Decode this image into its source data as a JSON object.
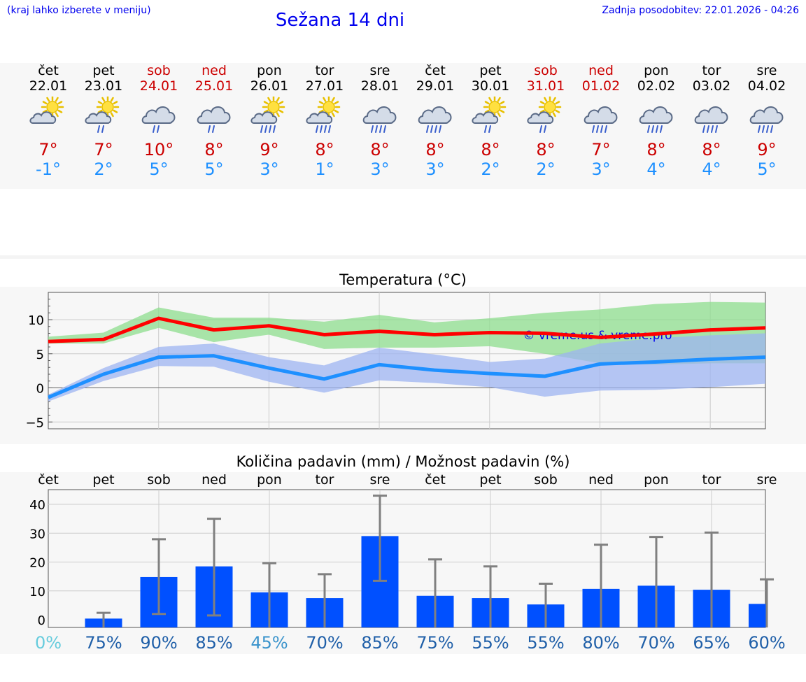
{
  "header": {
    "note": "(kraj lahko izberete v meniju)",
    "title": "Sežana 14 dni",
    "updated": "Zadnja posodobitev: 22.01.2026 - 04:26"
  },
  "days": [
    {
      "name": "čet",
      "date": "22.01",
      "weekend": false,
      "icon": "partly-cloudy-icon",
      "tmax": "7°",
      "tmin": "-1°"
    },
    {
      "name": "pet",
      "date": "23.01",
      "weekend": false,
      "icon": "sun-cloud-rain-icon",
      "tmax": "7°",
      "tmin": "2°"
    },
    {
      "name": "sob",
      "date": "24.01",
      "weekend": true,
      "icon": "cloud-rain-icon",
      "tmax": "10°",
      "tmin": "5°"
    },
    {
      "name": "ned",
      "date": "25.01",
      "weekend": true,
      "icon": "cloud-rain-icon",
      "tmax": "8°",
      "tmin": "5°"
    },
    {
      "name": "pon",
      "date": "26.01",
      "weekend": false,
      "icon": "sun-cloud-heavy-rain-icon",
      "tmax": "9°",
      "tmin": "3°"
    },
    {
      "name": "tor",
      "date": "27.01",
      "weekend": false,
      "icon": "sun-cloud-heavy-rain-icon",
      "tmax": "8°",
      "tmin": "1°"
    },
    {
      "name": "sre",
      "date": "28.01",
      "weekend": false,
      "icon": "cloud-heavy-rain-icon",
      "tmax": "8°",
      "tmin": "3°"
    },
    {
      "name": "čet",
      "date": "29.01",
      "weekend": false,
      "icon": "cloud-heavy-rain-icon",
      "tmax": "8°",
      "tmin": "3°"
    },
    {
      "name": "pet",
      "date": "30.01",
      "weekend": false,
      "icon": "sun-cloud-rain-icon",
      "tmax": "8°",
      "tmin": "2°"
    },
    {
      "name": "sob",
      "date": "31.01",
      "weekend": true,
      "icon": "sun-cloud-rain-icon",
      "tmax": "8°",
      "tmin": "2°"
    },
    {
      "name": "ned",
      "date": "01.02",
      "weekend": true,
      "icon": "cloud-heavy-rain-icon",
      "tmax": "7°",
      "tmin": "3°"
    },
    {
      "name": "pon",
      "date": "02.02",
      "weekend": false,
      "icon": "cloud-heavy-rain-icon",
      "tmax": "8°",
      "tmin": "4°"
    },
    {
      "name": "tor",
      "date": "03.02",
      "weekend": false,
      "icon": "cloud-heavy-rain-icon",
      "tmax": "8°",
      "tmin": "4°"
    },
    {
      "name": "sre",
      "date": "04.02",
      "weekend": false,
      "icon": "cloud-heavy-rain-icon",
      "tmax": "9°",
      "tmin": "5°"
    }
  ],
  "chart_data": [
    {
      "type": "line",
      "title": "Temperatura (°C)",
      "watermark": "© vreme.us & vreme.pro",
      "ylim": [
        -6,
        14
      ],
      "yticks": [
        10,
        5,
        0,
        -5
      ],
      "ytick_labels": [
        "10",
        "5",
        "0",
        "−5"
      ],
      "grid": true,
      "x": [
        1,
        2,
        3,
        4,
        5,
        6,
        7,
        8,
        9,
        10,
        11,
        12,
        13,
        14
      ],
      "series": [
        {
          "name": "max",
          "color": "#ff0000",
          "values": [
            6.8,
            7.1,
            10.2,
            8.5,
            9.1,
            7.8,
            8.3,
            7.8,
            8.1,
            8.0,
            7.4,
            7.9,
            8.5,
            8.8
          ]
        },
        {
          "name": "min",
          "color": "#1e90ff",
          "values": [
            -1.4,
            2.0,
            4.5,
            4.7,
            2.9,
            1.3,
            3.4,
            2.6,
            2.1,
            1.7,
            3.5,
            3.8,
            4.2,
            4.5
          ]
        }
      ],
      "bands": [
        {
          "name": "max-range",
          "color": "#8ede8e",
          "lower": [
            6.5,
            6.5,
            8.8,
            6.7,
            7.8,
            5.7,
            5.9,
            5.9,
            6.1,
            5.0,
            3.6,
            3.4,
            3.6,
            3.6
          ],
          "upper": [
            7.5,
            8.1,
            11.8,
            10.3,
            10.3,
            9.7,
            10.7,
            9.6,
            10.2,
            11.0,
            11.5,
            12.3,
            12.6,
            12.5
          ]
        },
        {
          "name": "min-range",
          "color": "#9db4f2",
          "lower": [
            -2.0,
            1.0,
            3.2,
            3.1,
            0.9,
            -0.7,
            1.1,
            0.7,
            0.1,
            -1.3,
            -0.4,
            -0.3,
            0.1,
            0.6
          ],
          "upper": [
            -1.0,
            2.9,
            6.0,
            6.5,
            4.5,
            3.3,
            5.9,
            4.9,
            3.8,
            4.3,
            6.5,
            7.3,
            7.7,
            8.0
          ]
        }
      ]
    },
    {
      "type": "bar",
      "title": "Količina padavin (mm) / Možnost padavin (%)",
      "categories": [
        "čet",
        "pet",
        "sob",
        "ned",
        "pon",
        "tor",
        "sre",
        "čet",
        "pet",
        "sob",
        "ned",
        "pon",
        "tor",
        "sre"
      ],
      "weekend": [
        false,
        false,
        true,
        true,
        false,
        false,
        false,
        false,
        false,
        true,
        true,
        false,
        false,
        false
      ],
      "values": [
        0,
        0.4,
        14.8,
        18.5,
        9.5,
        7.5,
        29.0,
        8.3,
        7.5,
        5.3,
        10.7,
        11.8,
        10.4,
        5.5
      ],
      "error_low": [
        0,
        0,
        2,
        1.5,
        0,
        0,
        13.5,
        0,
        0,
        0,
        0,
        0,
        0,
        0
      ],
      "error_high": [
        0,
        2.4,
        27.9,
        35.0,
        19.6,
        15.8,
        43.0,
        20.9,
        18.5,
        12.5,
        26.0,
        28.7,
        30.2,
        14.0
      ],
      "probability": [
        "0%",
        "75%",
        "90%",
        "85%",
        "45%",
        "70%",
        "85%",
        "75%",
        "55%",
        "55%",
        "80%",
        "70%",
        "65%",
        "60%"
      ],
      "probability_colors": [
        "#66ccdd",
        "#1f5fa8",
        "#1f5fa8",
        "#1f5fa8",
        "#3b94cc",
        "#1f5fa8",
        "#1f5fa8",
        "#1f5fa8",
        "#1f5fa8",
        "#1f5fa8",
        "#1f5fa8",
        "#1f5fa8",
        "#1f5fa8",
        "#1f5fa8"
      ],
      "yticks": [
        40,
        30,
        20,
        10,
        0
      ],
      "ylabel": "mm",
      "bar_color": "#0050ff"
    }
  ]
}
